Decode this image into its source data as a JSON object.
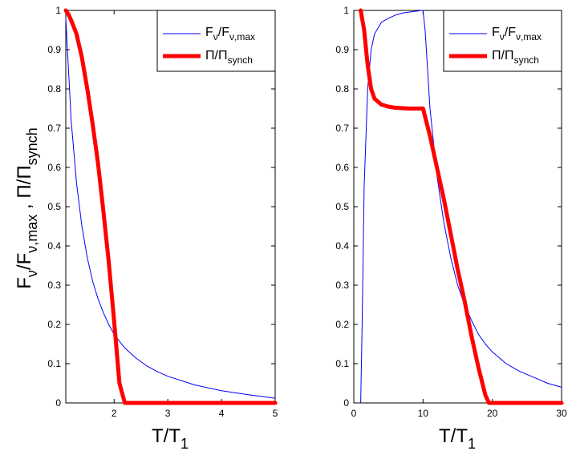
{
  "chart_data": [
    {
      "type": "line",
      "xlabel": "T/T1",
      "xlabel_main": "T/T",
      "xlabel_sub": "1",
      "ylabel": "Fν/Fν,max , Π/Πsynch",
      "xlim": [
        1.1,
        5
      ],
      "ylim": [
        0,
        1
      ],
      "xticks": [
        2,
        3,
        4,
        5
      ],
      "xtick_labels": [
        "2",
        "3",
        "4",
        "5"
      ],
      "yticks": [
        0,
        0.1,
        0.2,
        0.3,
        0.4,
        0.5,
        0.6,
        0.7,
        0.8,
        0.9,
        1
      ],
      "ytick_labels": [
        "0",
        "0.1",
        "0.2",
        "0.3",
        "0.4",
        "0.5",
        "0.6",
        "0.7",
        "0.8",
        "0.9",
        "1"
      ],
      "legend_position": "top-right",
      "series": [
        {
          "name": "Fν/Fν,max",
          "color": "#0000ff",
          "x": [
            1.1,
            1.2,
            1.3,
            1.4,
            1.5,
            1.6,
            1.7,
            1.8,
            1.9,
            2.0,
            2.2,
            2.4,
            2.6,
            2.8,
            3.0,
            3.5,
            4.0,
            4.5,
            5.0
          ],
          "y": [
            0.98,
            0.72,
            0.56,
            0.45,
            0.37,
            0.31,
            0.265,
            0.23,
            0.2,
            0.175,
            0.14,
            0.115,
            0.095,
            0.08,
            0.068,
            0.046,
            0.031,
            0.021,
            0.012
          ]
        },
        {
          "name": "Π/Πsynch",
          "color": "#ff0000",
          "x": [
            1.1,
            1.15,
            1.2,
            1.3,
            1.4,
            1.5,
            1.6,
            1.7,
            1.8,
            1.9,
            2.0,
            2.1,
            2.2,
            2.5,
            3.0,
            4.0,
            5.0
          ],
          "y": [
            1.0,
            0.99,
            0.975,
            0.94,
            0.88,
            0.8,
            0.71,
            0.61,
            0.49,
            0.36,
            0.21,
            0.05,
            0.0,
            0.0,
            0.0,
            0.0,
            0.0
          ]
        }
      ]
    },
    {
      "type": "line",
      "xlabel": "T/T1",
      "xlabel_main": "T/T",
      "xlabel_sub": "1",
      "ylabel": "",
      "xlim": [
        0,
        30
      ],
      "ylim": [
        0,
        1
      ],
      "xticks": [
        0,
        10,
        20,
        30
      ],
      "xtick_labels": [
        "0",
        "10",
        "20",
        "30"
      ],
      "yticks": [
        0,
        0.1,
        0.2,
        0.3,
        0.4,
        0.5,
        0.6,
        0.7,
        0.8,
        0.9,
        1
      ],
      "ytick_labels": [
        "0",
        "0.1",
        "0.2",
        "0.3",
        "0.4",
        "0.5",
        "0.6",
        "0.7",
        "0.8",
        "0.9",
        "1"
      ],
      "legend_position": "top-right",
      "series": [
        {
          "name": "Fν/Fν,max",
          "color": "#0000ff",
          "x": [
            1.0,
            1.2,
            1.5,
            2.0,
            2.5,
            3.0,
            4.0,
            5.0,
            6.0,
            7.0,
            8.0,
            9.0,
            9.8,
            10.0,
            10.3,
            11.0,
            12.0,
            13.0,
            14.0,
            15.0,
            16.0,
            17.0,
            18.0,
            19.0,
            20.0,
            22.0,
            24.0,
            26.0,
            28.0,
            30.0
          ],
          "y": [
            0.0,
            0.2,
            0.55,
            0.8,
            0.9,
            0.94,
            0.97,
            0.98,
            0.988,
            0.993,
            0.996,
            0.998,
            1.0,
            1.0,
            0.95,
            0.75,
            0.58,
            0.46,
            0.37,
            0.3,
            0.25,
            0.21,
            0.175,
            0.15,
            0.13,
            0.1,
            0.08,
            0.065,
            0.05,
            0.04
          ]
        },
        {
          "name": "Π/Πsynch",
          "color": "#ff0000",
          "x": [
            1.0,
            1.5,
            2.0,
            2.5,
            3.0,
            4.0,
            5.0,
            6.0,
            7.0,
            8.0,
            9.0,
            10.0,
            11.0,
            12.0,
            13.0,
            14.0,
            15.0,
            16.0,
            17.0,
            18.0,
            19.0,
            19.5,
            20.0,
            25.0,
            30.0
          ],
          "y": [
            1.0,
            0.95,
            0.86,
            0.8,
            0.775,
            0.76,
            0.755,
            0.752,
            0.751,
            0.75,
            0.75,
            0.75,
            0.68,
            0.6,
            0.52,
            0.43,
            0.34,
            0.26,
            0.17,
            0.09,
            0.02,
            0.0,
            0.0,
            0.0,
            0.0
          ]
        }
      ]
    }
  ],
  "legend": {
    "f_main": "F",
    "f_sub": "ν",
    "f_slash": "/F",
    "f_sub2": "ν,max",
    "p_main": "Π/Π",
    "p_sub": "synch"
  },
  "ylabel_parts": {
    "a": "F",
    "a_sub": "ν",
    "b": "/F",
    "b_sub": "ν,max",
    "c": " , Π/Π",
    "c_sub": "synch"
  }
}
